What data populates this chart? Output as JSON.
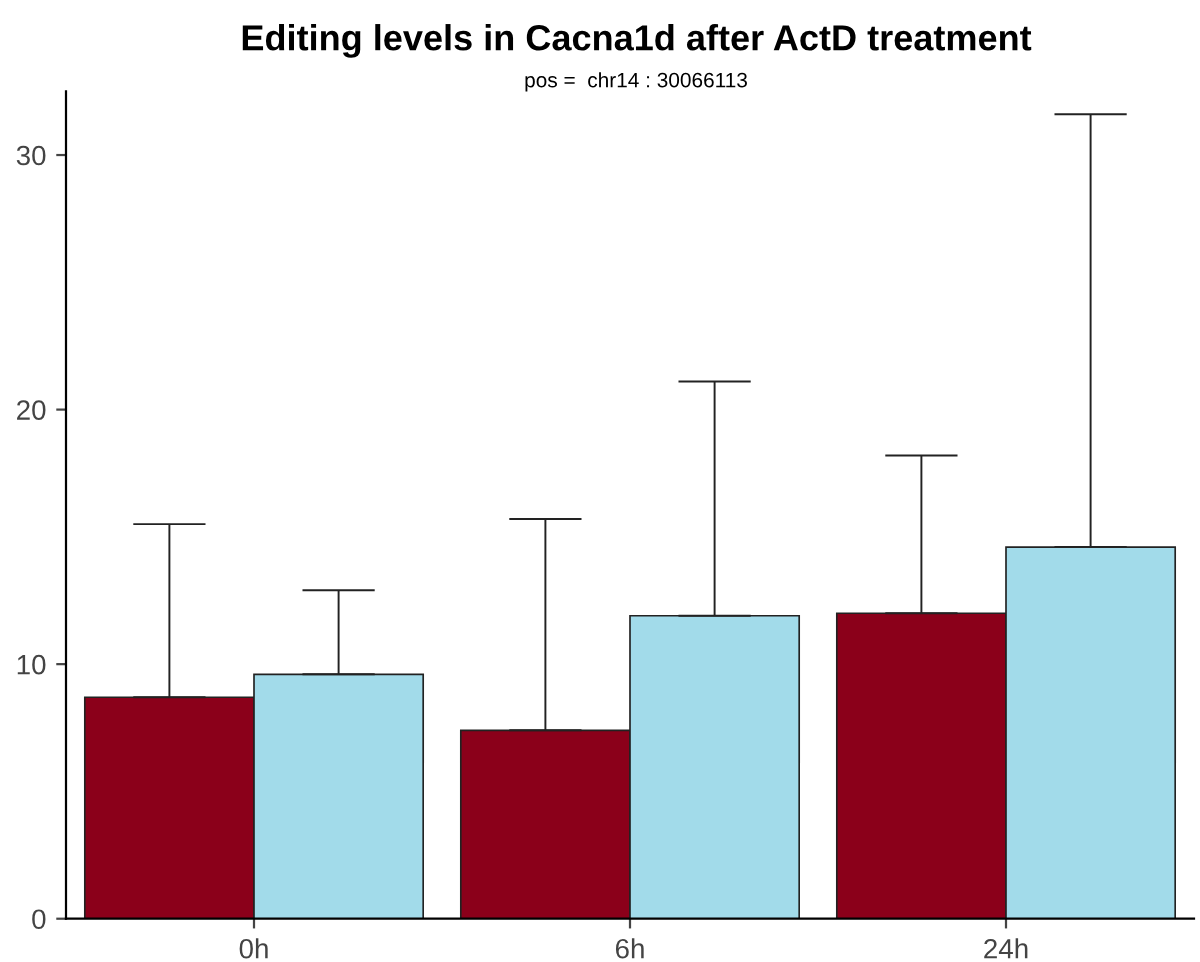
{
  "chart_data": {
    "type": "bar",
    "title": "Editing levels in Cacna1d after ActD treatment",
    "subtitle": "pos =  chr14 : 30066113",
    "categories": [
      "0h",
      "6h",
      "24h"
    ],
    "series": [
      {
        "color": "#8b001a",
        "values": [
          8.7,
          7.4,
          12.0
        ],
        "errors": [
          [
            8.7,
            15.5
          ],
          [
            7.4,
            15.7
          ],
          [
            12.0,
            18.2
          ]
        ]
      },
      {
        "color": "#a2dbea",
        "values": [
          9.6,
          11.9,
          14.6
        ],
        "errors": [
          [
            9.6,
            12.9
          ],
          [
            11.9,
            21.1
          ],
          [
            14.6,
            31.6
          ]
        ]
      }
    ],
    "ylim": [
      0,
      32.5
    ],
    "yticks": [
      0,
      10,
      20,
      30
    ],
    "grid": false,
    "legend": false
  }
}
